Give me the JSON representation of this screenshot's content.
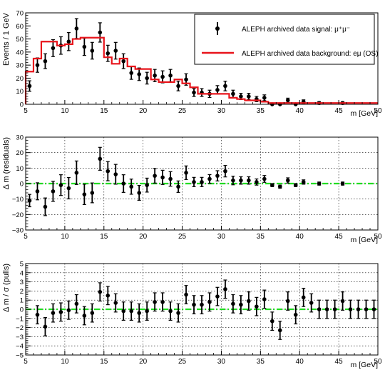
{
  "chart_data": [
    {
      "type": "bar",
      "xlabel": "m [GeV]",
      "ylabel": "Events / 1 GeV",
      "xlim": [
        5,
        50
      ],
      "ylim": [
        0,
        70
      ],
      "xticks": [
        "5",
        "10",
        "15",
        "20",
        "25",
        "30",
        "35",
        "40",
        "45",
        "50"
      ],
      "yticks": [
        "0",
        "10",
        "20",
        "30",
        "40",
        "50",
        "60",
        "70"
      ],
      "grid": false,
      "legend": {
        "placement": "top-right",
        "entries": [
          {
            "label": "ALEPH archived data signal: μ⁺μ⁻",
            "style": "points",
            "color": "#000000"
          },
          {
            "label": "ALEPH archived data background: eμ (OS)",
            "style": "line",
            "color": "#e8141b"
          }
        ]
      },
      "series": [
        {
          "name": "ALEPH archived data signal: μ⁺μ⁻",
          "style": "points",
          "color": "#000000",
          "points": [
            {
              "x": 5.5,
              "y": 14,
              "err": 4
            },
            {
              "x": 6.5,
              "y": 30,
              "err": 5.5
            },
            {
              "x": 7.5,
              "y": 33,
              "err": 5.7
            },
            {
              "x": 8.5,
              "y": 43,
              "err": 6.5
            },
            {
              "x": 9.5,
              "y": 45,
              "err": 6.7
            },
            {
              "x": 10.5,
              "y": 48,
              "err": 6.9
            },
            {
              "x": 11.5,
              "y": 58,
              "err": 7.6
            },
            {
              "x": 12.5,
              "y": 44,
              "err": 6.6
            },
            {
              "x": 13.5,
              "y": 41,
              "err": 6.4
            },
            {
              "x": 14.5,
              "y": 55,
              "err": 7.4
            },
            {
              "x": 15.5,
              "y": 39,
              "err": 6.2
            },
            {
              "x": 16.5,
              "y": 41,
              "err": 6.4
            },
            {
              "x": 17.5,
              "y": 33,
              "err": 5.7
            },
            {
              "x": 18.5,
              "y": 24,
              "err": 4.9
            },
            {
              "x": 19.5,
              "y": 23,
              "err": 4.8
            },
            {
              "x": 20.5,
              "y": 20,
              "err": 4.5
            },
            {
              "x": 21.5,
              "y": 22,
              "err": 4.7
            },
            {
              "x": 22.5,
              "y": 21,
              "err": 4.6
            },
            {
              "x": 23.5,
              "y": 22,
              "err": 4.7
            },
            {
              "x": 24.5,
              "y": 14,
              "err": 3.7
            },
            {
              "x": 25.5,
              "y": 19,
              "err": 4.4
            },
            {
              "x": 26.5,
              "y": 9,
              "err": 3
            },
            {
              "x": 27.5,
              "y": 9,
              "err": 3
            },
            {
              "x": 28.5,
              "y": 8,
              "err": 2.8
            },
            {
              "x": 29.5,
              "y": 11,
              "err": 3.3
            },
            {
              "x": 30.5,
              "y": 14,
              "err": 3.7
            },
            {
              "x": 31.5,
              "y": 8,
              "err": 2.8
            },
            {
              "x": 32.5,
              "y": 6,
              "err": 2.4
            },
            {
              "x": 33.5,
              "y": 6,
              "err": 2.4
            },
            {
              "x": 34.5,
              "y": 4,
              "err": 2
            },
            {
              "x": 35.5,
              "y": 5,
              "err": 2.2
            },
            {
              "x": 36.5,
              "y": 0,
              "err": 1
            },
            {
              "x": 37.5,
              "y": 0,
              "err": 1
            },
            {
              "x": 38.5,
              "y": 3,
              "err": 1.7
            },
            {
              "x": 39.5,
              "y": 0,
              "err": 1
            },
            {
              "x": 40.5,
              "y": 2,
              "err": 1.4
            },
            {
              "x": 42.5,
              "y": 1,
              "err": 1
            },
            {
              "x": 45.5,
              "y": 1,
              "err": 1
            }
          ]
        },
        {
          "name": "ALEPH archived data background: eμ (OS)",
          "style": "step",
          "color": "#e8141b",
          "bin_edges": [
            5,
            6,
            7,
            8,
            9,
            10,
            11,
            12,
            13,
            14,
            15,
            16,
            17,
            18,
            19,
            20,
            21,
            22,
            23,
            24,
            25,
            26,
            27,
            28,
            29,
            30,
            31,
            32,
            33,
            34,
            35,
            36,
            37,
            38,
            39,
            40,
            41,
            42,
            43,
            44,
            45,
            46,
            47,
            48,
            49,
            50
          ],
          "values": [
            25,
            35,
            48,
            48,
            45,
            46,
            50,
            51,
            51,
            51,
            36,
            31,
            35,
            29,
            27,
            27,
            19,
            17,
            17,
            19,
            16,
            13,
            8,
            8,
            8,
            8,
            5,
            4,
            3,
            3,
            2,
            1,
            1,
            1,
            1,
            1,
            1,
            1,
            1,
            1,
            1,
            1,
            1,
            1,
            1
          ]
        }
      ]
    },
    {
      "type": "scatter",
      "xlabel": "m [GeV]",
      "ylabel": "Δ m (residuals)",
      "xlim": [
        5,
        50
      ],
      "ylim": [
        -30,
        30
      ],
      "xticks": [
        "5",
        "10",
        "15",
        "20",
        "25",
        "30",
        "35",
        "40",
        "45",
        "50"
      ],
      "yticks": [
        "−30",
        "−20",
        "−10",
        "0",
        "10",
        "20",
        "30"
      ],
      "grid": true,
      "reference_line": {
        "y": 0,
        "color": "#22dd22",
        "style": "dash-dot"
      },
      "series": [
        {
          "style": "points",
          "color": "#000000",
          "points": [
            {
              "x": 5.5,
              "y": -11,
              "err": 4
            },
            {
              "x": 6.5,
              "y": -5,
              "err": 5.5
            },
            {
              "x": 7.5,
              "y": -15,
              "err": 5.7
            },
            {
              "x": 8.5,
              "y": -5,
              "err": 6.5
            },
            {
              "x": 9.5,
              "y": -1,
              "err": 6.7
            },
            {
              "x": 10.5,
              "y": -3,
              "err": 6.9
            },
            {
              "x": 11.5,
              "y": 7,
              "err": 7.6
            },
            {
              "x": 12.5,
              "y": -7,
              "err": 6.6
            },
            {
              "x": 13.5,
              "y": -6,
              "err": 6.4
            },
            {
              "x": 14.5,
              "y": 16,
              "err": 7.4
            },
            {
              "x": 15.5,
              "y": 8,
              "err": 6.2
            },
            {
              "x": 16.5,
              "y": 6,
              "err": 6.4
            },
            {
              "x": 17.5,
              "y": 0,
              "err": 5.7
            },
            {
              "x": 18.5,
              "y": -2,
              "err": 4.9
            },
            {
              "x": 19.5,
              "y": -6,
              "err": 4.8
            },
            {
              "x": 20.5,
              "y": -1,
              "err": 4.5
            },
            {
              "x": 21.5,
              "y": 5,
              "err": 4.7
            },
            {
              "x": 22.5,
              "y": 4,
              "err": 4.6
            },
            {
              "x": 23.5,
              "y": 3,
              "err": 4.7
            },
            {
              "x": 24.5,
              "y": -2,
              "err": 3.7
            },
            {
              "x": 25.5,
              "y": 7,
              "err": 4.4
            },
            {
              "x": 26.5,
              "y": 1,
              "err": 3
            },
            {
              "x": 27.5,
              "y": 1,
              "err": 3
            },
            {
              "x": 28.5,
              "y": 3,
              "err": 2.8
            },
            {
              "x": 29.5,
              "y": 5,
              "err": 3.3
            },
            {
              "x": 30.5,
              "y": 8,
              "err": 3.7
            },
            {
              "x": 31.5,
              "y": 2,
              "err": 2.8
            },
            {
              "x": 32.5,
              "y": 2,
              "err": 2.4
            },
            {
              "x": 33.5,
              "y": 2,
              "err": 2.4
            },
            {
              "x": 34.5,
              "y": 1,
              "err": 2
            },
            {
              "x": 35.5,
              "y": 3,
              "err": 2.2
            },
            {
              "x": 36.5,
              "y": -1,
              "err": 1
            },
            {
              "x": 37.5,
              "y": -2,
              "err": 1
            },
            {
              "x": 38.5,
              "y": 2,
              "err": 1.7
            },
            {
              "x": 39.5,
              "y": -1,
              "err": 1
            },
            {
              "x": 40.5,
              "y": 1,
              "err": 1.4
            },
            {
              "x": 42.5,
              "y": 0,
              "err": 1
            },
            {
              "x": 45.5,
              "y": 0,
              "err": 1
            }
          ]
        }
      ]
    },
    {
      "type": "scatter",
      "xlabel": "m [GeV]",
      "ylabel": "Δ m / σ (pulls)",
      "xlim": [
        5,
        50
      ],
      "ylim": [
        -5,
        5
      ],
      "xticks": [
        "5",
        "10",
        "15",
        "20",
        "25",
        "30",
        "35",
        "40",
        "45",
        "50"
      ],
      "yticks": [
        "−5",
        "−4",
        "−3",
        "−2",
        "−1",
        "0",
        "1",
        "2",
        "3",
        "4",
        "5"
      ],
      "grid": true,
      "reference_line": {
        "y": 0,
        "color": "#22dd22",
        "style": "dash-dot"
      },
      "series": [
        {
          "style": "points",
          "color": "#000000",
          "points": [
            {
              "x": 6.5,
              "y": -0.6,
              "err": 1
            },
            {
              "x": 7.5,
              "y": -1.9,
              "err": 1
            },
            {
              "x": 8.5,
              "y": -0.4,
              "err": 1
            },
            {
              "x": 9.5,
              "y": -0.3,
              "err": 1
            },
            {
              "x": 10.5,
              "y": -0.1,
              "err": 1
            },
            {
              "x": 11.5,
              "y": 0.6,
              "err": 1
            },
            {
              "x": 12.5,
              "y": -0.7,
              "err": 1
            },
            {
              "x": 13.5,
              "y": -0.4,
              "err": 1
            },
            {
              "x": 14.5,
              "y": 1.9,
              "err": 1
            },
            {
              "x": 15.5,
              "y": 1.5,
              "err": 1
            },
            {
              "x": 16.5,
              "y": 0.7,
              "err": 1
            },
            {
              "x": 17.5,
              "y": -0.2,
              "err": 1
            },
            {
              "x": 18.5,
              "y": -0.2,
              "err": 1
            },
            {
              "x": 19.5,
              "y": -0.4,
              "err": 1
            },
            {
              "x": 20.5,
              "y": -0.2,
              "err": 1
            },
            {
              "x": 21.5,
              "y": 0.8,
              "err": 1
            },
            {
              "x": 22.5,
              "y": 0.8,
              "err": 1
            },
            {
              "x": 23.5,
              "y": -0.2,
              "err": 1
            },
            {
              "x": 24.5,
              "y": -0.4,
              "err": 1
            },
            {
              "x": 25.5,
              "y": 1.6,
              "err": 1
            },
            {
              "x": 26.5,
              "y": 0.5,
              "err": 1
            },
            {
              "x": 27.5,
              "y": 0.5,
              "err": 1
            },
            {
              "x": 28.5,
              "y": 0.8,
              "err": 1
            },
            {
              "x": 29.5,
              "y": 1.4,
              "err": 1
            },
            {
              "x": 30.5,
              "y": 2.2,
              "err": 1
            },
            {
              "x": 31.5,
              "y": 0.6,
              "err": 1
            },
            {
              "x": 32.5,
              "y": 0.5,
              "err": 1
            },
            {
              "x": 33.5,
              "y": 0.9,
              "err": 1
            },
            {
              "x": 34.5,
              "y": 0.3,
              "err": 1
            },
            {
              "x": 35.5,
              "y": 1.1,
              "err": 1
            },
            {
              "x": 36.5,
              "y": -1.3,
              "err": 1
            },
            {
              "x": 37.5,
              "y": -2.3,
              "err": 1
            },
            {
              "x": 38.5,
              "y": 0.9,
              "err": 1
            },
            {
              "x": 39.5,
              "y": -0.6,
              "err": 1
            },
            {
              "x": 40.5,
              "y": 1.3,
              "err": 1
            },
            {
              "x": 41.5,
              "y": 0.7,
              "err": 1
            },
            {
              "x": 42.5,
              "y": 0,
              "err": 1
            },
            {
              "x": 43.5,
              "y": 0,
              "err": 1
            },
            {
              "x": 44.5,
              "y": 0,
              "err": 1
            },
            {
              "x": 45.5,
              "y": 0.9,
              "err": 1
            },
            {
              "x": 46.5,
              "y": 0,
              "err": 1
            },
            {
              "x": 47.5,
              "y": 0,
              "err": 1
            },
            {
              "x": 48.5,
              "y": 0,
              "err": 1
            },
            {
              "x": 49.5,
              "y": 0,
              "err": 1
            }
          ]
        }
      ]
    }
  ]
}
